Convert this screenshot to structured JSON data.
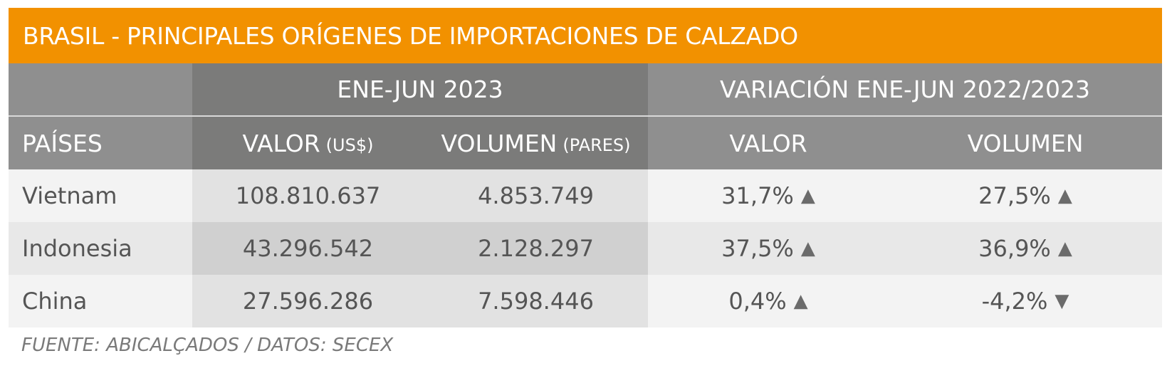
{
  "title": "BRASIL - PRINCIPALES ORÍGENES DE IMPORTACIONES DE CALZADO",
  "group_headers": {
    "blank": "",
    "period": "ENE-JUN 2023",
    "variation": "VARIACIÓN ENE-JUN 2022/2023"
  },
  "column_headers": {
    "country": "PAÍSES",
    "value": "VALOR",
    "value_unit": "(US$)",
    "volume": "VOLUMEN",
    "volume_unit": "(PARES)",
    "var_value": "VALOR",
    "var_volume": "VOLUMEN"
  },
  "rows": [
    {
      "country": "Vietnam",
      "value": "108.810.637",
      "volume": "4.853.749",
      "var_value": "31,7%",
      "var_value_arrow": "▲",
      "var_volume": "27,5%",
      "var_volume_arrow": "▲"
    },
    {
      "country": "Indonesia",
      "value": "43.296.542",
      "volume": "2.128.297",
      "var_value": "37,5%",
      "var_value_arrow": "▲",
      "var_volume": "36,9%",
      "var_volume_arrow": "▲"
    },
    {
      "country": "China",
      "value": "27.596.286",
      "volume": "7.598.446",
      "var_value": "0,4%",
      "var_value_arrow": "▲",
      "var_volume": "-4,2%",
      "var_volume_arrow": "▼"
    }
  ],
  "source": "FUENTE: ABICALÇADOS / DATOS: SECEX",
  "colors": {
    "title_bar": "#f29100",
    "header_dark": "#7b7b7a",
    "header_light": "#8f8f8f"
  },
  "chart_data": {
    "type": "table",
    "title": "BRASIL - PRINCIPALES ORÍGENES DE IMPORTACIONES DE CALZADO",
    "columns": [
      "PAÍSES",
      "VALOR (US$)",
      "VOLUMEN (PARES)",
      "VALOR",
      "VOLUMEN"
    ],
    "categories": [
      "Vietnam",
      "Indonesia",
      "China"
    ],
    "series": [
      {
        "name": "VALOR (US$)",
        "values": [
          108810637,
          43296542,
          27596286
        ]
      },
      {
        "name": "VOLUMEN (PARES)",
        "values": [
          4853749,
          2128297,
          7598446
        ]
      },
      {
        "name": "VALOR",
        "values": [
          31.7,
          37.5,
          0.4
        ]
      },
      {
        "name": "VOLUMEN",
        "values": [
          27.5,
          36.9,
          -4.2
        ]
      }
    ]
  }
}
